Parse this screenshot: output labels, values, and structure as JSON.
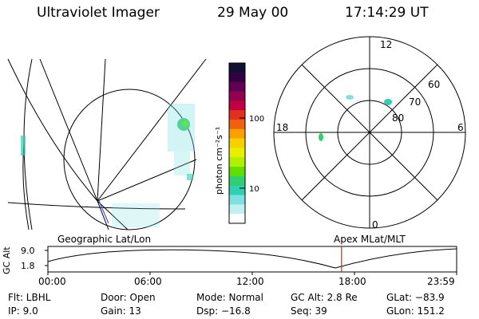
{
  "header": {
    "instrument": "Ultraviolet Imager",
    "date": "29 May 00",
    "time": "17:14:29 UT"
  },
  "colorbar": {
    "unit_label": "photon cm⁻²s⁻¹",
    "ticks": [
      "100",
      "10"
    ],
    "colors": [
      "#101030",
      "#300040",
      "#600050",
      "#900050",
      "#c00040",
      "#e03020",
      "#f06010",
      "#f8a000",
      "#f8d000",
      "#e8f000",
      "#b0f000",
      "#60e000",
      "#30d070",
      "#30d0b0",
      "#80e0e0",
      "#c0f0f0",
      "#ffffff"
    ]
  },
  "polar": {
    "mlt_labels": {
      "top": "12",
      "left": "18",
      "right": "6",
      "bottom": "0"
    },
    "lat_labels": [
      "60",
      "70",
      "80"
    ]
  },
  "ephemeris": {
    "left_title": "Geographic Lat/Lon",
    "right_title": "Apex MLat/MLT",
    "y_label": "GC Alt",
    "y_ticks": [
      "9.0",
      "1.8"
    ],
    "x_ticks": [
      "00:00",
      "06:00",
      "12:00",
      "18:00",
      "23:59"
    ],
    "marker_time_hours": 17.24,
    "marker_color": "#e02020"
  },
  "footer": {
    "row1": [
      "Flt: LBHL",
      "Door: Open",
      "Mode: Normal",
      "GC Alt: 2.8 Re",
      "GLat: −83.9"
    ],
    "row2": [
      "IP:  9.0",
      "Gain: 13",
      "Dsp:  −16.8",
      "Seq: 39",
      "GLon: 151.2"
    ]
  }
}
